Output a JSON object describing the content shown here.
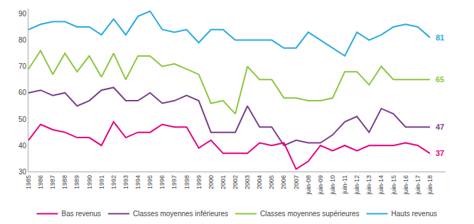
{
  "chart_data": {
    "type": "line",
    "categories": [
      "1985",
      "1986",
      "1987",
      "1988",
      "1989",
      "1990",
      "1991",
      "1992",
      "1993",
      "1994",
      "1995",
      "1996",
      "1997",
      "1998",
      "1999",
      "2000",
      "2001",
      "2002",
      "2003",
      "2004",
      "2005",
      "2006",
      "2007",
      "juin-08",
      "juin-09",
      "juin-10",
      "juin-11",
      "juin-12",
      "juin-13",
      "juin-14",
      "juin-15",
      "juin-16",
      "juin-17",
      "juin-18"
    ],
    "series": [
      {
        "name": "Hauts revenus",
        "color": "#29ABE2",
        "values": [
          84,
          86,
          87,
          87,
          85,
          85,
          82,
          88,
          82,
          89,
          91,
          84,
          83,
          84,
          79,
          84,
          84,
          80,
          80,
          80,
          80,
          77,
          77,
          83,
          80,
          77,
          74,
          83,
          80,
          82,
          85,
          86,
          85,
          81
        ]
      },
      {
        "name": "Classes moyennes supérieures",
        "color": "#8DC63F",
        "values": [
          69,
          76,
          67,
          75,
          68,
          74,
          66,
          75,
          65,
          74,
          74,
          70,
          71,
          69,
          67,
          56,
          57,
          52,
          70,
          65,
          65,
          58,
          58,
          57,
          57,
          58,
          68,
          68,
          63,
          70,
          65,
          65,
          65,
          65
        ]
      },
      {
        "name": "Classes moyennes inférieures",
        "color": "#7B3F8C",
        "values": [
          60,
          61,
          59,
          60,
          55,
          57,
          61,
          62,
          57,
          57,
          60,
          56,
          57,
          59,
          57,
          45,
          45,
          45,
          55,
          47,
          47,
          40,
          42,
          41,
          41,
          44,
          49,
          51,
          45,
          54,
          52,
          47,
          47,
          47
        ]
      },
      {
        "name": "Bas revenus",
        "color": "#E5007E",
        "values": [
          42,
          48,
          46,
          45,
          43,
          43,
          40,
          49,
          43,
          45,
          45,
          48,
          47,
          47,
          39,
          42,
          37,
          37,
          37,
          41,
          40,
          41,
          31,
          34,
          40,
          38,
          40,
          38,
          40,
          40,
          40,
          41,
          40,
          37
        ]
      }
    ],
    "ylim": [
      30,
      92
    ],
    "yticks": [
      30,
      40,
      50,
      60,
      70,
      80,
      90
    ],
    "grid": false,
    "legend": "bottom",
    "annotations": [
      {
        "text": "81",
        "x": "juin-18",
        "y": 81,
        "color": "#29ABE2"
      },
      {
        "text": "65",
        "x": "juin-18",
        "y": 65,
        "color": "#8DC63F"
      },
      {
        "text": "47",
        "x": "juin-18",
        "y": 47,
        "color": "#7B3F8C"
      },
      {
        "text": "37",
        "x": "juin-18",
        "y": 37,
        "color": "#E5007E"
      }
    ]
  }
}
